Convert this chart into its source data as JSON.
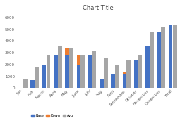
{
  "title": "Chart Title",
  "categories": [
    "Jan",
    "Feb",
    "March",
    "April",
    "May",
    "June",
    "July",
    "Aug",
    "Sept",
    "September",
    "October",
    "November",
    "December",
    "Total"
  ],
  "blue_vals": [
    0,
    700,
    2000,
    2800,
    2800,
    2000,
    2800,
    800,
    1200,
    1200,
    2400,
    3600,
    4800,
    5400
  ],
  "orange_vals": [
    0,
    0,
    0,
    0,
    600,
    800,
    0,
    0,
    0,
    200,
    0,
    0,
    0,
    0
  ],
  "gray_vals": [
    800,
    1800,
    2800,
    3600,
    3400,
    2800,
    3200,
    2600,
    2000,
    2400,
    2800,
    4800,
    5200,
    5400
  ],
  "bar_colors": {
    "blue": "#4472c4",
    "orange": "#ed7d31",
    "gray": "#a6a6a6"
  },
  "ylim": [
    0,
    6400
  ],
  "yticks": [
    0,
    1000,
    2000,
    3000,
    4000,
    5000,
    6000
  ],
  "legend_labels": [
    "Base",
    "Down",
    "Avg"
  ],
  "bg_color": "#ffffff",
  "grid_color": "#d9d9d9",
  "title_fontsize": 6,
  "tick_fontsize": 4
}
